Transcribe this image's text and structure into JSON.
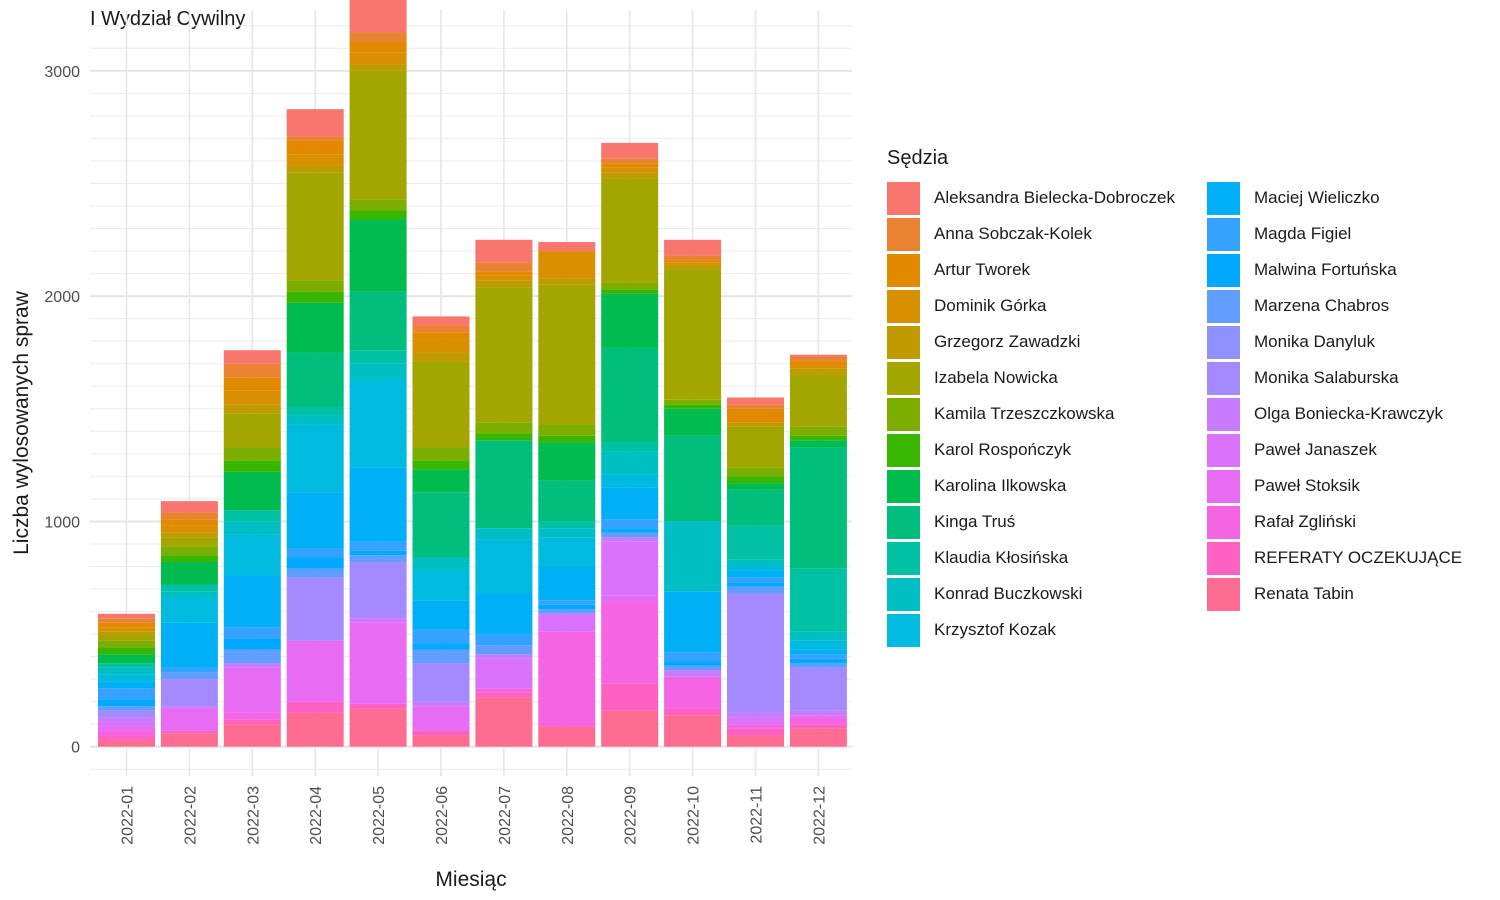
{
  "title": "I Wydział Cywilny",
  "chart_data": {
    "type": "bar",
    "stacked": true,
    "xlabel": "Miesiąc",
    "ylabel": "Liczba wylosowanych spraw",
    "ylim": [
      -130,
      3270
    ],
    "yticks": [
      0,
      1000,
      2000,
      3000
    ],
    "grid": true,
    "legend_title": "Sędzia",
    "legend_position": "right",
    "categories": [
      "2022-01",
      "2022-02",
      "2022-03",
      "2022-04",
      "2022-05",
      "2022-06",
      "2022-07",
      "2022-08",
      "2022-09",
      "2022-10",
      "2022-11",
      "2022-12"
    ],
    "series": [
      {
        "name": "Aleksandra Bielecka-Dobroczek",
        "color": "#F8766D",
        "values": [
          20,
          50,
          60,
          120,
          150,
          40,
          100,
          40,
          70,
          70,
          30,
          10
        ]
      },
      {
        "name": "Anna Sobczak-Kolek",
        "color": "#EA8331",
        "values": [
          20,
          30,
          60,
          20,
          40,
          30,
          40,
          0,
          20,
          20,
          20,
          20
        ]
      },
      {
        "name": "Artur Tworek",
        "color": "#E38900",
        "values": [
          20,
          30,
          60,
          60,
          50,
          30,
          20,
          0,
          20,
          10,
          60,
          20
        ]
      },
      {
        "name": "Dominik Górka",
        "color": "#D89000",
        "values": [
          20,
          30,
          60,
          50,
          50,
          60,
          20,
          120,
          20,
          10,
          0,
          10
        ]
      },
      {
        "name": "Grzegorz Zawadzki",
        "color": "#C09B00",
        "values": [
          10,
          20,
          40,
          30,
          30,
          40,
          30,
          30,
          30,
          20,
          20,
          30
        ]
      },
      {
        "name": "Izabela Nowicka",
        "color": "#A3A500",
        "values": [
          30,
          40,
          150,
          480,
          570,
          380,
          600,
          620,
          460,
          580,
          180,
          230
        ]
      },
      {
        "name": "Kamila Trzeszczkowska",
        "color": "#7CAE00",
        "values": [
          30,
          40,
          60,
          50,
          50,
          60,
          50,
          50,
          30,
          20,
          40,
          40
        ]
      },
      {
        "name": "Karol Rospończyk",
        "color": "#39B600",
        "values": [
          30,
          30,
          50,
          50,
          40,
          40,
          30,
          30,
          20,
          20,
          30,
          20
        ]
      },
      {
        "name": "Karolina Ilkowska",
        "color": "#00BB4E",
        "values": [
          40,
          100,
          170,
          220,
          320,
          100,
          0,
          170,
          240,
          120,
          30,
          30
        ]
      },
      {
        "name": "Kinga Truś",
        "color": "#00BF7D",
        "values": [
          0,
          0,
          0,
          240,
          260,
          290,
          390,
          180,
          420,
          380,
          160,
          540
        ]
      },
      {
        "name": "Klaudia Kłosińska",
        "color": "#00C1A3",
        "values": [
          20,
          30,
          50,
          40,
          60,
          0,
          0,
          30,
          40,
          0,
          150,
          280
        ]
      },
      {
        "name": "Konrad Buczkowski",
        "color": "#00BFC4",
        "values": [
          30,
          30,
          60,
          40,
          70,
          60,
          50,
          40,
          100,
          310,
          30,
          40
        ]
      },
      {
        "name": "Krzysztof Kozak",
        "color": "#00BAE0",
        "values": [
          30,
          110,
          180,
          300,
          390,
          130,
          240,
          130,
          60,
          0,
          20,
          40
        ]
      },
      {
        "name": "Maciej Wieliczko",
        "color": "#00B0F6",
        "values": [
          30,
          200,
          230,
          250,
          330,
          130,
          180,
          150,
          140,
          270,
          30,
          20
        ]
      },
      {
        "name": "Magda Figiel",
        "color": "#35A2FF",
        "values": [
          50,
          20,
          50,
          40,
          40,
          60,
          50,
          20,
          40,
          40,
          20,
          20
        ]
      },
      {
        "name": "Malwina Fortuńska",
        "color": "#00A9FF",
        "values": [
          30,
          0,
          50,
          50,
          20,
          30,
          0,
          20,
          20,
          20,
          20,
          20
        ]
      },
      {
        "name": "Marzena Chabros",
        "color": "#619CFF",
        "values": [
          20,
          30,
          60,
          40,
          30,
          60,
          40,
          20,
          20,
          20,
          30,
          20
        ]
      },
      {
        "name": "Monika Danyluk",
        "color": "#8F91FF",
        "values": [
          0,
          0,
          0,
          0,
          0,
          0,
          0,
          0,
          0,
          0,
          0,
          0
        ]
      },
      {
        "name": "Monika Salaburska",
        "color": "#A58AFF",
        "values": [
          30,
          120,
          0,
          280,
          250,
          170,
          0,
          0,
          0,
          0,
          530,
          190
        ]
      },
      {
        "name": "Olga Boniecka-Krawczyk",
        "color": "#C77CFF",
        "values": [
          20,
          10,
          20,
          0,
          0,
          20,
          20,
          0,
          20,
          30,
          20,
          20
        ]
      },
      {
        "name": "Paweł Janaszek",
        "color": "#DB72FB",
        "values": [
          20,
          0,
          0,
          0,
          20,
          0,
          130,
          80,
          240,
          0,
          30,
          10
        ]
      },
      {
        "name": "Paweł Stoksik",
        "color": "#E76BF3",
        "values": [
          20,
          100,
          200,
          270,
          360,
          110,
          0,
          0,
          30,
          0,
          0,
          0
        ]
      },
      {
        "name": "Rafał Zgliński",
        "color": "#F564E3",
        "values": [
          20,
          0,
          30,
          0,
          0,
          0,
          20,
          420,
          360,
          140,
          20,
          30
        ]
      },
      {
        "name": "REFERATY OCZEKUJĄCE",
        "color": "#FF61C3",
        "values": [
          20,
          10,
          20,
          50,
          20,
          20,
          20,
          0,
          120,
          30,
          30,
          20
        ]
      },
      {
        "name": "Renata Tabin",
        "color": "#FF6C91",
        "values": [
          30,
          60,
          100,
          150,
          170,
          50,
          220,
          90,
          160,
          140,
          50,
          80
        ]
      }
    ]
  }
}
